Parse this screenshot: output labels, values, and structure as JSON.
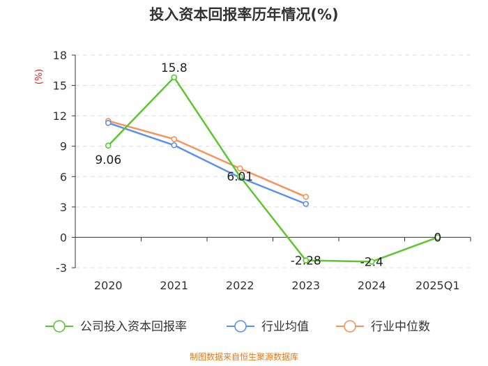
{
  "chart_data": {
    "type": "line",
    "title": "投入资本回报率历年情况(%)",
    "ylabel": "(%)",
    "xlabel": "",
    "categories": [
      "2020",
      "2021",
      "2022",
      "2023",
      "2024",
      "2025Q1"
    ],
    "ylim": [
      -3,
      18
    ],
    "yticks": [
      "18",
      "15",
      "12",
      "9",
      "6",
      "3",
      "0",
      "-3"
    ],
    "series": [
      {
        "name": "公司投入资本回报率",
        "color": "#5ac72e",
        "values": [
          9.06,
          15.8,
          6.01,
          -2.28,
          -2.4,
          0
        ],
        "labels": [
          "9.06",
          "15.8",
          "6.01",
          "-2.28",
          "-2.4",
          "0"
        ]
      },
      {
        "name": "行业均值",
        "color": "#5b8ff0",
        "values": [
          11.3,
          9.1,
          5.9,
          3.3,
          null,
          null
        ]
      },
      {
        "name": "行业中位数",
        "color": "#f7935a",
        "values": [
          11.5,
          9.7,
          6.8,
          4.0,
          null,
          null
        ]
      }
    ],
    "ylabel_color": "#e02020",
    "grid": true
  },
  "footer": {
    "source": "制图数据来自恒生聚源数据库",
    "color": "#e07a1f"
  }
}
